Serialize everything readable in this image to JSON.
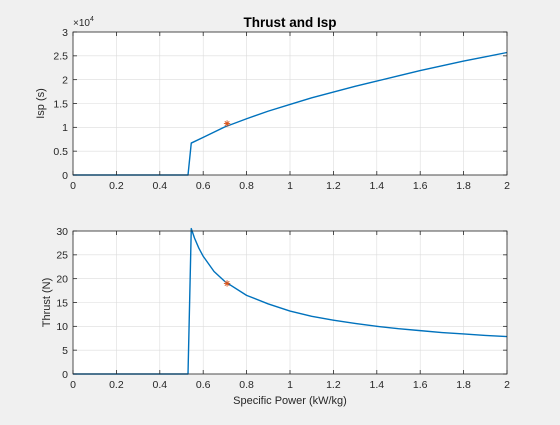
{
  "figure_title": "Thrust and Isp",
  "chart_data": [
    {
      "type": "line",
      "title": "Thrust and Isp",
      "xlabel": "",
      "ylabel": "Isp (s)",
      "xlim": [
        0,
        2
      ],
      "ylim": [
        0,
        30000
      ],
      "xticks": [
        0,
        0.2,
        0.4,
        0.6,
        0.8,
        1,
        1.2,
        1.4,
        1.6,
        1.8,
        2
      ],
      "xtick_labels": [
        "0",
        "0.2",
        "0.4",
        "0.6",
        "0.8",
        "1",
        "1.2",
        "1.4",
        "1.6",
        "1.8",
        "2"
      ],
      "yticks": [
        0,
        5000,
        10000,
        15000,
        20000,
        25000,
        30000
      ],
      "ytick_labels": [
        "0",
        "0.5",
        "1",
        "1.5",
        "2",
        "2.5",
        "3"
      ],
      "y_exponent_label": "×10",
      "y_exponent_power": "4",
      "grid": true,
      "series": [
        {
          "color": "#0072bd",
          "x": [
            0,
            0.1,
            0.2,
            0.3,
            0.4,
            0.5,
            0.53,
            0.545,
            0.6,
            0.7,
            0.8,
            0.9,
            1.0,
            1.1,
            1.2,
            1.3,
            1.4,
            1.5,
            1.6,
            1.7,
            1.8,
            1.9,
            2.0
          ],
          "y": [
            0,
            0,
            0,
            0,
            0,
            0,
            0,
            6700,
            7900,
            10100,
            11800,
            13400,
            14800,
            16200,
            17400,
            18600,
            19700,
            20800,
            21900,
            22900,
            23900,
            24800,
            25700
          ]
        }
      ],
      "markers": [
        {
          "x": 0.71,
          "y": 10800,
          "symbol": "*",
          "color": "#d95319"
        }
      ]
    },
    {
      "type": "line",
      "title": "",
      "xlabel": "Specific Power (kW/kg)",
      "ylabel": "Thrust (N)",
      "xlim": [
        0,
        2
      ],
      "ylim": [
        0,
        30
      ],
      "xticks": [
        0,
        0.2,
        0.4,
        0.6,
        0.8,
        1,
        1.2,
        1.4,
        1.6,
        1.8,
        2
      ],
      "xtick_labels": [
        "0",
        "0.2",
        "0.4",
        "0.6",
        "0.8",
        "1",
        "1.2",
        "1.4",
        "1.6",
        "1.8",
        "2"
      ],
      "yticks": [
        0,
        5,
        10,
        15,
        20,
        25,
        30
      ],
      "ytick_labels": [
        "0",
        "5",
        "10",
        "15",
        "20",
        "25",
        "30"
      ],
      "grid": true,
      "series": [
        {
          "color": "#0072bd",
          "x": [
            0,
            0.1,
            0.2,
            0.3,
            0.4,
            0.5,
            0.53,
            0.545,
            0.56,
            0.58,
            0.6,
            0.65,
            0.7,
            0.8,
            0.9,
            1.0,
            1.1,
            1.2,
            1.3,
            1.4,
            1.5,
            1.6,
            1.7,
            1.8,
            1.9,
            2.0
          ],
          "y": [
            0,
            0,
            0,
            0,
            0,
            0,
            0,
            30.5,
            28.5,
            26.4,
            24.7,
            21.5,
            19.4,
            16.5,
            14.7,
            13.2,
            12.1,
            11.3,
            10.6,
            10.0,
            9.5,
            9.1,
            8.7,
            8.4,
            8.1,
            7.85
          ]
        }
      ],
      "markers": [
        {
          "x": 0.71,
          "y": 19,
          "symbol": "*",
          "color": "#d95319"
        }
      ]
    }
  ]
}
